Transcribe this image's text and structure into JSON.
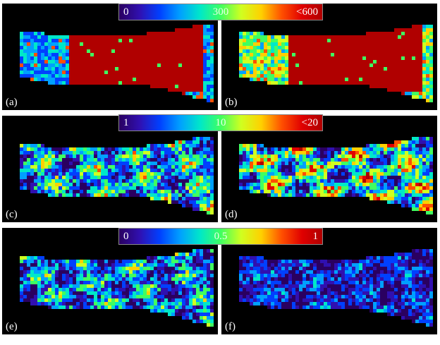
{
  "colormap": [
    "#2a0060",
    "#3010b0",
    "#0040ff",
    "#00a0ff",
    "#00e8c8",
    "#40ff60",
    "#d0ff20",
    "#ffd000",
    "#ff5000",
    "#e00000",
    "#b00000"
  ],
  "rows": [
    {
      "colorbar": {
        "min_label": "0",
        "mid_label": "300",
        "max_label": "<600"
      },
      "panels": [
        {
          "label": "(a)",
          "tissue": "high-core"
        },
        {
          "label": "(b)",
          "tissue": "high-core-wide-rim"
        }
      ]
    },
    {
      "colorbar": {
        "min_label": "1",
        "mid_label": "10",
        "max_label": "<20"
      },
      "panels": [
        {
          "label": "(c)",
          "tissue": "speckled"
        },
        {
          "label": "(d)",
          "tissue": "speckled-dense"
        }
      ]
    },
    {
      "colorbar": {
        "min_label": "0",
        "mid_label": "0.5",
        "max_label": "1"
      },
      "panels": [
        {
          "label": "(e)",
          "tissue": "speckled-sparse"
        },
        {
          "label": "(f)",
          "tissue": "speckled-faint"
        }
      ]
    }
  ]
}
